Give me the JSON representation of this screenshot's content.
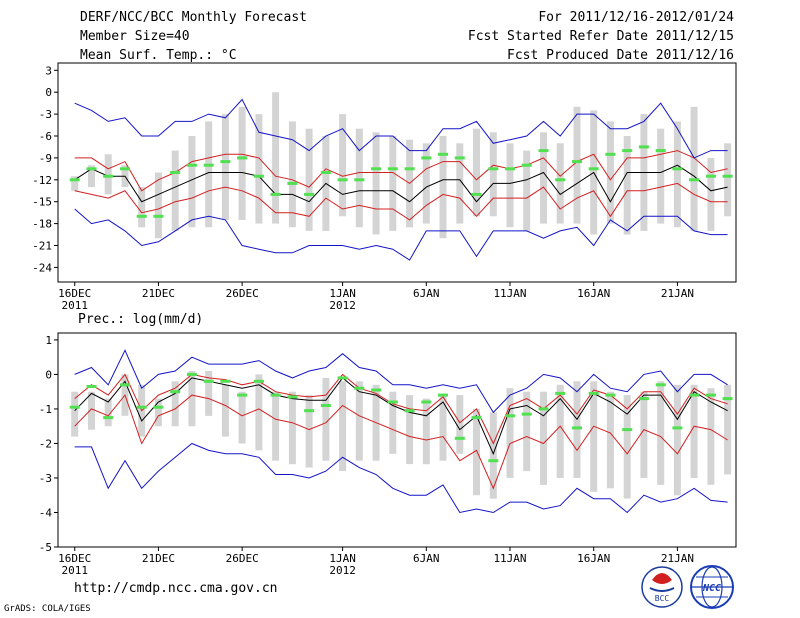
{
  "header": {
    "title": "DERF/NCC/BCC Monthly Forecast",
    "member": "Member Size=40",
    "variable": "Mean Surf. Temp.: °C",
    "period": "For 2011/12/16-2012/01/24",
    "refer": "Fcst Started Refer Date 2011/12/15",
    "produced": "Fcst Produced Date 2011/12/16"
  },
  "footer": {
    "url": "http://cmdp.ncc.cma.gov.cn",
    "credit": "GrADS: COLA/IGES"
  },
  "logos": {
    "bcc": "BCC",
    "ncc": "NCC"
  },
  "colors": {
    "box": "#d4d4d4",
    "median": "#50e050",
    "mean": "#000000",
    "inner": "#d42020",
    "outer": "#1414c8"
  },
  "chart_data": [
    {
      "type": "line",
      "title": "Mean Surf. Temp.: °C",
      "x_ticks": [
        {
          "label": "16DEC",
          "sub": "2011",
          "day": 0
        },
        {
          "label": "21DEC",
          "sub": "",
          "day": 5
        },
        {
          "label": "26DEC",
          "sub": "",
          "day": 10
        },
        {
          "label": "1JAN",
          "sub": "2012",
          "day": 16
        },
        {
          "label": "6JAN",
          "sub": "",
          "day": 21
        },
        {
          "label": "11JAN",
          "sub": "",
          "day": 26
        },
        {
          "label": "16JAN",
          "sub": "",
          "day": 31
        },
        {
          "label": "21JAN",
          "sub": "",
          "day": 36
        }
      ],
      "y_ticks": [
        3,
        0,
        -3,
        -6,
        -9,
        -12,
        -15,
        -18,
        -21,
        -24
      ],
      "ylim": [
        -26,
        4
      ],
      "xlim": [
        -1,
        39.5
      ],
      "box_bottom": [
        -13.5,
        -13,
        -14,
        -13,
        -18.5,
        -20,
        -19,
        -18.5,
        -18.5,
        -17.5,
        -17.5,
        -18,
        -18,
        -18.5,
        -19,
        -19,
        -17,
        -18.5,
        -19.5,
        -19,
        -18.5,
        -18,
        -20,
        -18,
        -17,
        -17,
        -18.5,
        -19,
        -18,
        -18,
        -18,
        -19.5,
        -18,
        -19.5,
        -19,
        -18,
        -18.5,
        -19,
        -19,
        -17
      ],
      "box_top": [
        -11.5,
        -10,
        -8.5,
        -10,
        -13,
        -11,
        -8,
        -6,
        -4,
        -3,
        -2,
        -3,
        0,
        -4,
        -5,
        -6,
        -3,
        -5,
        -5.5,
        -6,
        -6.5,
        -7,
        -6,
        -7,
        -5,
        -5.5,
        -7,
        -8,
        -5.5,
        -7,
        -2,
        -2.5,
        -4,
        -6,
        -3,
        -5,
        -4,
        -2,
        -9,
        -7
      ],
      "median": [
        -12,
        -10.5,
        -11.5,
        -10.5,
        -17,
        -17,
        -11,
        -10,
        -10,
        -9.5,
        -9,
        -11.5,
        -14,
        -12.5,
        -14,
        -11,
        -12,
        -12,
        -10.5,
        -10.5,
        -10.5,
        -9,
        -8.5,
        -9,
        -14,
        -10.5,
        -10.5,
        -10,
        -8,
        -12,
        -9.5,
        -10.5,
        -8.5,
        -8,
        -7.5,
        -8,
        -10.5,
        -12,
        -11.5,
        -11.5
      ],
      "series": [
        {
          "name": "mean",
          "values": [
            -12,
            -10.5,
            -11.5,
            -11.5,
            -15,
            -14,
            -13,
            -12,
            -11,
            -11,
            -11,
            -11.5,
            -14,
            -14,
            -15,
            -12.5,
            -14,
            -13.5,
            -13.5,
            -13.5,
            -15,
            -13,
            -12,
            -12,
            -15,
            -12.5,
            -12.5,
            -12,
            -11,
            -14,
            -12.5,
            -11,
            -15,
            -11,
            -11,
            -11,
            -10,
            -11.5,
            -13.5,
            -13
          ]
        },
        {
          "name": "upper-spread",
          "values": [
            -9,
            -9,
            -10.5,
            -9.5,
            -13.5,
            -12,
            -11,
            -9.5,
            -9,
            -8.5,
            -8.5,
            -9,
            -11.5,
            -12,
            -13,
            -10.5,
            -11.5,
            -11,
            -11,
            -11,
            -12.5,
            -10.5,
            -9.5,
            -9.5,
            -12,
            -10,
            -10.5,
            -10,
            -9,
            -11.5,
            -9.5,
            -8.5,
            -12,
            -9,
            -9,
            -8.5,
            -8,
            -9,
            -11,
            -10.5
          ]
        },
        {
          "name": "lower-spread",
          "values": [
            -13.5,
            -14,
            -14.5,
            -13.5,
            -16.5,
            -16,
            -15,
            -14.5,
            -13.5,
            -13,
            -13.5,
            -14.5,
            -16.5,
            -16.5,
            -17,
            -14.5,
            -16,
            -15.5,
            -16,
            -16,
            -17.5,
            -15.5,
            -14,
            -14.5,
            -17,
            -14.5,
            -14.5,
            -14.5,
            -13,
            -16,
            -14.5,
            -13.5,
            -17,
            -13.5,
            -13.5,
            -13,
            -12.5,
            -14,
            -15,
            -15
          ]
        },
        {
          "name": "upper-extreme",
          "values": [
            -1.5,
            -2.5,
            -4,
            -3.5,
            -6,
            -6,
            -4,
            -4,
            -3,
            -3.5,
            -1,
            -5.5,
            -6,
            -6.5,
            -8,
            -6,
            -5,
            -8,
            -6,
            -6,
            -8,
            -8,
            -5,
            -5,
            -4,
            -7,
            -6.5,
            -6,
            -4,
            -6,
            -3,
            -3,
            -5,
            -5,
            -4,
            -1.5,
            -5,
            -9,
            -8,
            -8
          ]
        },
        {
          "name": "lower-extreme",
          "values": [
            -16,
            -18,
            -17.5,
            -19,
            -21,
            -20.5,
            -19,
            -17.5,
            -17,
            -17.5,
            -21,
            -21.5,
            -22,
            -22,
            -21,
            -21,
            -21,
            -21.5,
            -21,
            -21.5,
            -23,
            -19,
            -19,
            -19,
            -22.5,
            -19,
            -19,
            -19,
            -20,
            -19,
            -18.5,
            -21,
            -17.5,
            -19,
            -17,
            -17,
            -17,
            -19,
            -19.5,
            -19.5
          ]
        }
      ]
    },
    {
      "type": "line",
      "title": "Prec.: log(mm/d)",
      "x_ticks": [
        {
          "label": "16DEC",
          "sub": "2011",
          "day": 0
        },
        {
          "label": "21DEC",
          "sub": "",
          "day": 5
        },
        {
          "label": "26DEC",
          "sub": "",
          "day": 10
        },
        {
          "label": "1JAN",
          "sub": "2012",
          "day": 16
        },
        {
          "label": "6JAN",
          "sub": "",
          "day": 21
        },
        {
          "label": "11JAN",
          "sub": "",
          "day": 26
        },
        {
          "label": "16JAN",
          "sub": "",
          "day": 31
        },
        {
          "label": "21JAN",
          "sub": "",
          "day": 36
        }
      ],
      "y_ticks": [
        1,
        0,
        -1,
        -2,
        -3,
        -4,
        -5
      ],
      "ylim": [
        -5,
        1.2
      ],
      "xlim": [
        -1,
        39.5
      ],
      "box_bottom": [
        -1.8,
        -1.6,
        -1.5,
        -1.2,
        -1.8,
        -1.5,
        -1.5,
        -1.5,
        -1.2,
        -1.8,
        -2,
        -2.2,
        -2.5,
        -2.6,
        -2.7,
        -2.5,
        -2.8,
        -2.5,
        -2.5,
        -2.3,
        -2.6,
        -2.6,
        -2.5,
        -2.3,
        -3.5,
        -3.6,
        -3,
        -2.8,
        -3.2,
        -3,
        -3,
        -3.4,
        -3.3,
        -3.6,
        -3,
        -3.2,
        -3.5,
        -3,
        -3.2,
        -2.9
      ],
      "box_top": [
        -0.5,
        -0.5,
        -0.7,
        0,
        -0.3,
        -0.7,
        -0.2,
        0.1,
        0.1,
        -0.3,
        -0.5,
        0,
        -0.5,
        -0.5,
        -0.6,
        -0.1,
        -0.2,
        -0.2,
        -0.3,
        -0.5,
        -0.6,
        -0.7,
        -0.6,
        -0.6,
        -1,
        -1.1,
        -0.4,
        -0.5,
        -0.5,
        -0.3,
        -0.2,
        -0.2,
        -0.5,
        -0.6,
        -0.5,
        -0.2,
        -0.3,
        -0.3,
        -0.4,
        -0.3
      ],
      "median": [
        -0.95,
        -0.35,
        -1.25,
        -0.3,
        -0.95,
        -0.95,
        -0.5,
        0,
        -0.2,
        -0.2,
        -0.6,
        -0.2,
        -0.6,
        -0.65,
        -1.05,
        -0.9,
        -0.1,
        -0.4,
        -0.45,
        -0.8,
        -1.05,
        -0.8,
        -0.6,
        -1.85,
        -1.25,
        -2.5,
        -1.2,
        -1.15,
        -1,
        -0.55,
        -1.55,
        -0.55,
        -0.6,
        -1.6,
        -0.7,
        -0.3,
        -1.55,
        -0.6,
        -0.6,
        -0.7
      ],
      "series": [
        {
          "name": "mean",
          "values": [
            -1.05,
            -0.55,
            -0.8,
            -0.2,
            -1.35,
            -0.8,
            -0.55,
            -0.1,
            -0.2,
            -0.3,
            -0.4,
            -0.3,
            -0.6,
            -0.7,
            -0.75,
            -0.75,
            -0.1,
            -0.5,
            -0.6,
            -0.9,
            -1.1,
            -1.2,
            -0.8,
            -1.6,
            -1.2,
            -2.3,
            -1.0,
            -0.9,
            -1.2,
            -0.7,
            -1.3,
            -0.55,
            -0.8,
            -1.15,
            -0.6,
            -0.6,
            -1.3,
            -0.5,
            -0.8,
            -1.05
          ]
        },
        {
          "name": "upper-spread",
          "values": [
            -0.7,
            -0.3,
            -0.6,
            0,
            -1.05,
            -0.6,
            -0.4,
            0,
            -0.1,
            -0.15,
            -0.3,
            -0.2,
            -0.5,
            -0.6,
            -0.65,
            -0.6,
            0,
            -0.4,
            -0.55,
            -0.85,
            -1.0,
            -1.05,
            -0.65,
            -1.4,
            -1.0,
            -2.0,
            -0.9,
            -0.7,
            -1.0,
            -0.6,
            -1.15,
            -0.45,
            -0.6,
            -1.0,
            -0.5,
            -0.5,
            -1.15,
            -0.4,
            -0.7,
            -0.85
          ]
        },
        {
          "name": "lower-spread",
          "values": [
            -1.5,
            -1.0,
            -1.2,
            -0.6,
            -2.0,
            -1.2,
            -1.0,
            -0.6,
            -0.7,
            -0.9,
            -1.2,
            -1.0,
            -1.3,
            -1.4,
            -1.6,
            -1.4,
            -0.9,
            -1.2,
            -1.4,
            -1.6,
            -1.8,
            -1.9,
            -1.8,
            -2.5,
            -2.2,
            -3.3,
            -2.0,
            -1.8,
            -2.0,
            -1.5,
            -2.2,
            -1.5,
            -1.7,
            -2.3,
            -1.6,
            -1.8,
            -2.3,
            -1.5,
            -1.6,
            -1.9
          ]
        },
        {
          "name": "upper-extreme",
          "values": [
            0,
            0.2,
            -0.3,
            0.7,
            -0.4,
            0,
            0.1,
            0.5,
            0.3,
            0.3,
            0.3,
            0.4,
            0.1,
            -0.1,
            0.1,
            0.2,
            0.6,
            0.2,
            0.1,
            -0.3,
            -0.3,
            -0.4,
            -0.3,
            -0.4,
            -0.3,
            -1.1,
            -0.6,
            -0.4,
            0,
            -0.1,
            -0.5,
            0,
            -0.4,
            -0.5,
            0,
            0.1,
            -0.5,
            0,
            0,
            -0.3
          ]
        },
        {
          "name": "lower-extreme",
          "values": [
            -2.1,
            -2.1,
            -3.3,
            -2.5,
            -3.3,
            -2.8,
            -2.4,
            -2.0,
            -2.2,
            -2.3,
            -2.3,
            -2.4,
            -2.9,
            -2.9,
            -3.0,
            -2.8,
            -2.4,
            -2.7,
            -2.9,
            -3.3,
            -3.5,
            -3.5,
            -3.2,
            -4.0,
            -3.9,
            -4.0,
            -3.7,
            -3.7,
            -3.9,
            -3.8,
            -3.3,
            -3.6,
            -3.6,
            -4.0,
            -3.5,
            -3.7,
            -3.6,
            -3.3,
            -3.65,
            -3.7
          ]
        }
      ]
    }
  ]
}
